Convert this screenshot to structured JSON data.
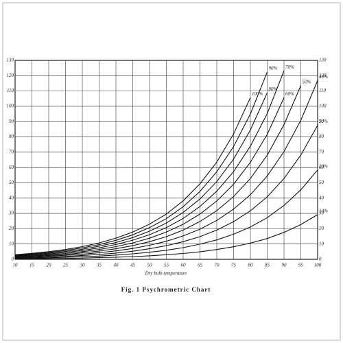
{
  "chart_data": {
    "type": "line",
    "title": "Fig. 1 Psychrometric Chart",
    "x_label": "Dry bulb temperature",
    "x": [
      10,
      15,
      20,
      25,
      30,
      35,
      40,
      45,
      50,
      55,
      60,
      65,
      70,
      75,
      80,
      85,
      90,
      95,
      100
    ],
    "xlim": [
      10,
      100
    ],
    "xticks": [
      10,
      15,
      20,
      25,
      30,
      35,
      40,
      45,
      50,
      55,
      60,
      65,
      70,
      75,
      80,
      85,
      90,
      95,
      100
    ],
    "ylim": [
      0,
      130
    ],
    "yticks": [
      0,
      10,
      20,
      30,
      40,
      50,
      60,
      70,
      80,
      90,
      100,
      110,
      120,
      130
    ],
    "grid": true,
    "series": [
      {
        "name": "100%",
        "color": "#111111",
        "values": [
          3.0,
          3.9,
          5.0,
          6.4,
          8.3,
          10.7,
          13.8,
          17.8,
          23.0,
          29.6,
          38.2,
          49.3,
          63.5,
          81.9,
          105.6,
          null,
          null,
          null,
          null
        ]
      },
      {
        "name": "90%",
        "color": "#111111",
        "values": [
          2.7,
          3.5,
          4.5,
          5.8,
          7.5,
          9.6,
          12.4,
          16.0,
          20.7,
          26.6,
          34.4,
          44.4,
          57.2,
          73.7,
          95.0,
          122.4,
          null,
          null,
          null
        ]
      },
      {
        "name": "80%",
        "color": "#111111",
        "values": [
          2.4,
          3.1,
          4.0,
          5.1,
          6.6,
          8.6,
          11.0,
          14.2,
          18.4,
          23.7,
          30.6,
          39.4,
          50.8,
          65.5,
          84.5,
          108.8,
          null,
          null,
          null
        ]
      },
      {
        "name": "70%",
        "color": "#111111",
        "values": [
          2.1,
          2.7,
          3.5,
          4.5,
          5.8,
          7.5,
          9.7,
          12.5,
          16.1,
          20.7,
          26.7,
          34.5,
          44.5,
          57.3,
          73.9,
          95.2,
          123.2,
          null,
          null
        ]
      },
      {
        "name": "60%",
        "color": "#111111",
        "values": [
          1.8,
          2.3,
          3.0,
          3.8,
          5.0,
          6.4,
          8.3,
          10.7,
          13.8,
          17.8,
          22.9,
          29.6,
          38.1,
          49.1,
          63.4,
          81.6,
          105.6,
          null,
          null
        ]
      },
      {
        "name": "50%",
        "color": "#111111",
        "values": [
          1.5,
          2.0,
          2.5,
          3.2,
          4.2,
          5.4,
          6.9,
          8.9,
          11.5,
          14.8,
          19.1,
          24.7,
          31.8,
          41.0,
          52.8,
          68.0,
          88.0,
          113.5,
          null
        ]
      },
      {
        "name": "40%",
        "color": "#111111",
        "values": [
          1.2,
          1.6,
          2.0,
          2.6,
          3.3,
          4.3,
          5.5,
          7.1,
          9.2,
          11.8,
          15.3,
          19.7,
          25.4,
          32.8,
          42.2,
          54.4,
          70.4,
          90.8,
          116.8
        ]
      },
      {
        "name": "30%",
        "color": "#111111",
        "values": [
          0.9,
          1.2,
          1.5,
          1.9,
          2.5,
          3.2,
          4.1,
          5.3,
          6.9,
          8.9,
          11.5,
          14.8,
          19.1,
          24.6,
          31.7,
          40.8,
          52.8,
          68.1,
          87.6
        ]
      },
      {
        "name": "20%",
        "color": "#111111",
        "values": [
          0.6,
          0.8,
          1.0,
          1.3,
          1.7,
          2.1,
          2.8,
          3.6,
          4.6,
          5.9,
          7.6,
          9.9,
          12.7,
          16.4,
          21.1,
          27.2,
          35.2,
          45.4,
          58.4
        ]
      },
      {
        "name": "10%",
        "color": "#111111",
        "values": [
          0.3,
          0.4,
          0.5,
          0.6,
          0.8,
          1.1,
          1.4,
          1.8,
          2.3,
          3.0,
          3.8,
          4.9,
          6.4,
          8.2,
          10.6,
          13.6,
          17.6,
          22.7,
          29.2
        ]
      }
    ]
  }
}
